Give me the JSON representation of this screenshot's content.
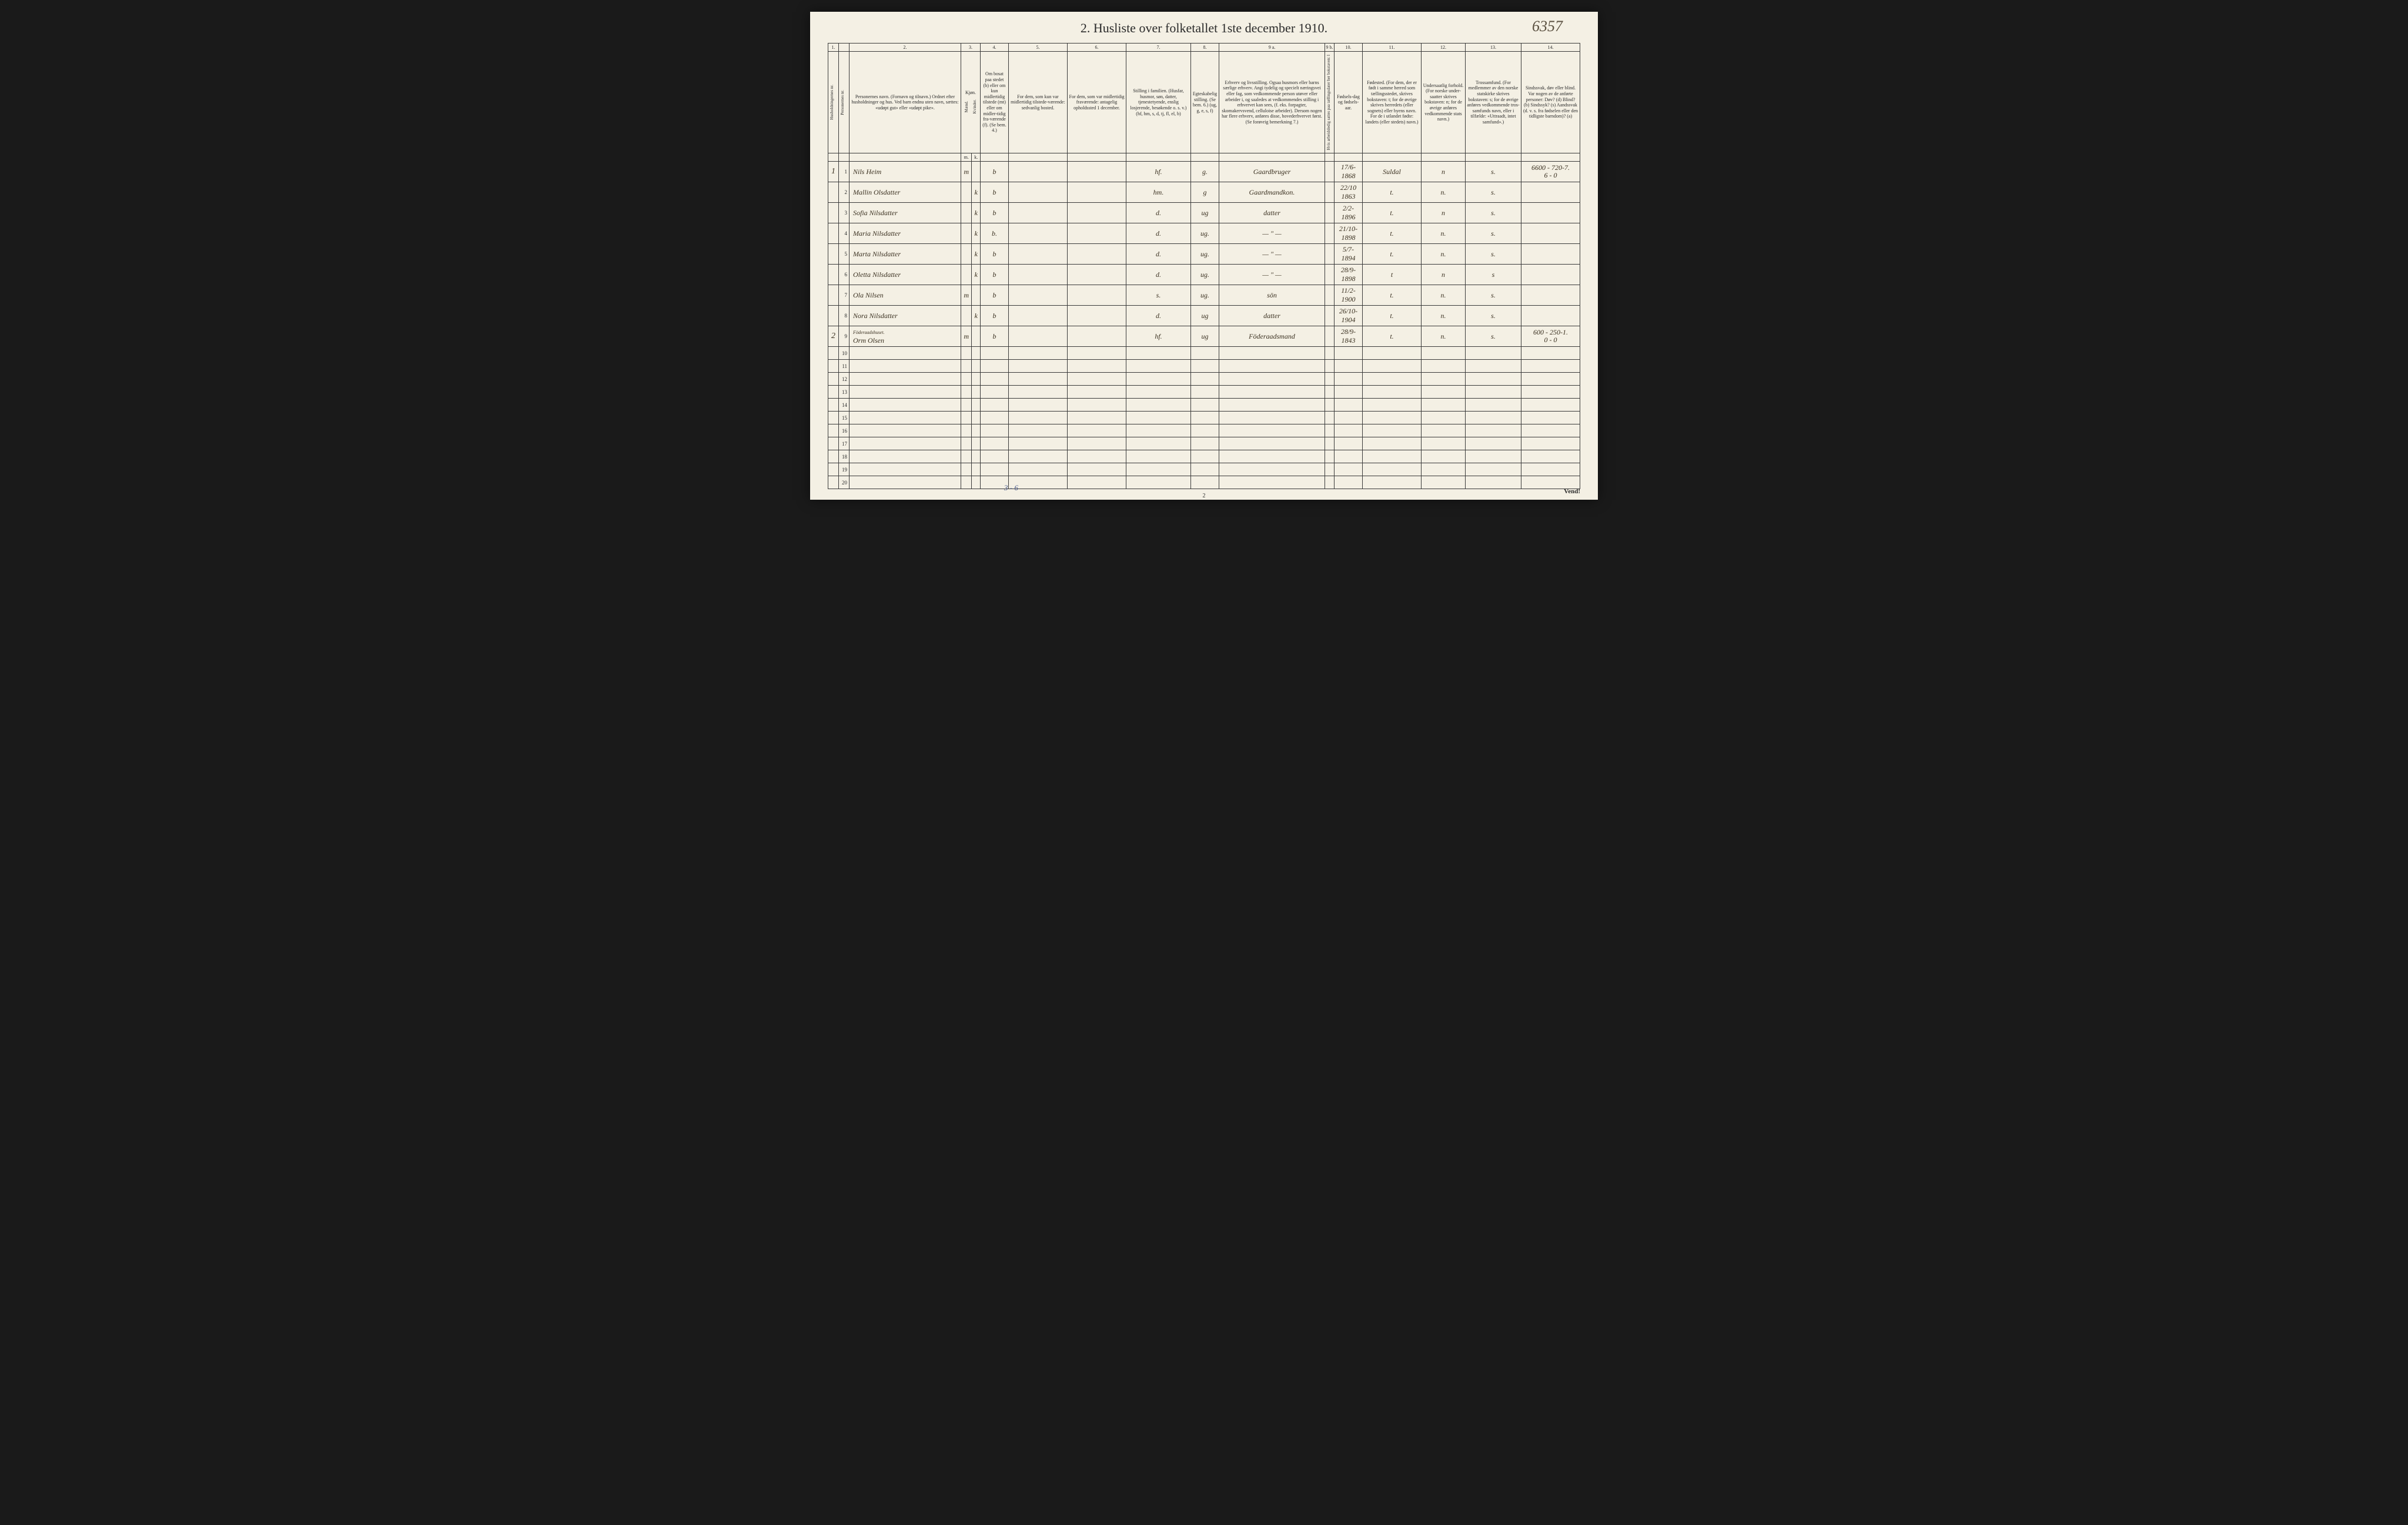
{
  "page_number_handwritten": "6357",
  "title": "2.  Husliste over folketallet 1ste december 1910.",
  "column_numbers": [
    "1.",
    "",
    "2.",
    "3.",
    "",
    "4.",
    "5.",
    "6.",
    "7.",
    "8.",
    "9 a.",
    "9 b.",
    "10.",
    "11.",
    "12.",
    "13.",
    "14."
  ],
  "headers": {
    "col1": "Husholdningernes nr.",
    "col2": "Personernes nr.",
    "col3": "Personernes navn.\n(Fornavn og tilnavn.)\nOrdnet efter husholdninger og hus.\nVed barn endnu uten navn, sættes: «udøpt gut» eller «udøpt pike».",
    "col4": "Kjøn.",
    "col4a": "Mænd.",
    "col4b": "Kvinder.",
    "col5": "Om bosat paa stedet (b) eller om kun midlertidig tilstede (mt) eller om midler-tidig fra-værende (f). (Se bem. 4.)",
    "col6": "For dem, som kun var midlertidig tilstede-værende:\nsedvanlig bosted.",
    "col7": "For dem, som var midlertidig fraværende:\nantagelig opholdssted 1 december.",
    "col8": "Stilling i familien.\n(Husfar, husmor, søn, datter, tjenestetyende, enslig losjerende, besøkende o. s. v.)\n(hf, hm, s, d, tj, fl, el, b)",
    "col9": "Egteskabelig stilling.\n(Se bem. 6.)\n(ug, g, e, s, f)",
    "col10": "Erhverv og livsstilling.\nOgsaa husmors eller barns særlige erhverv. Angi tydelig og specielt næringsvei eller fag, som vedkommende person utøver eller arbeider i, og saaledes at vedkommendes stilling i erhvervet kan sees, (f. eks. forpagter, skomakervsvend, celluloise arbeider). Dersom nogen har flere erhverv, anføres disse, hovederhvervet først. (Se forøvrig bemerkning 7.)",
    "col10b": "Hvis arbeidsledig sattes paa tællingsdater her bokstaven: l",
    "col11": "Fødsels-dag og fødsels-aar.",
    "col12": "Fødested.\n(For dem, der er født i samme herred som tællingsstedet, skrives bokstaven: t; for de øvrige skrives herredets (eller sognets) eller byens navn. For de i utlandet fødte: landets (eller stedets) navn.)",
    "col13": "Undersaatlig forhold.\n(For norske under-saatter skrives bokstaven: n; for de øvrige anføres vedkommende stats navn.)",
    "col14": "Trossamfund.\n(For medlemmer av den norske statskirke skrives bokstaven: s; for de øvrige anføres vedkommende tros-samfunds navn, eller i tilfælde: «Uttraadt, intet samfund».)",
    "col15": "Sindssvak, døv eller blind.\nVar nogen av de anførte personer:\nDøv? (d)\nBlind? (b)\nSindssyk? (s)\nAandssvak (d. v. s. fra fødselen eller den tidligste barndom)? (a)"
  },
  "rows": [
    {
      "household": "1",
      "num": "1",
      "name": "Nils Heim",
      "sex_m": "m",
      "sex_k": "",
      "residence": "b",
      "col6": "",
      "col7": "",
      "family": "hf.",
      "marital": "g.",
      "occupation": "Gaardbruger",
      "col10b": "",
      "birth": "17/6-1868",
      "birthplace": "Suldal",
      "nationality": "n",
      "faith": "s.",
      "notes": "6600 - 720-7.\n6 - 0"
    },
    {
      "household": "",
      "num": "2",
      "name": "Mallin Olsdatter",
      "sex_m": "",
      "sex_k": "k",
      "residence": "b",
      "col6": "",
      "col7": "",
      "family": "hm.",
      "marital": "g",
      "occupation": "Gaardmandkon.",
      "col10b": "",
      "birth": "22/10 1863",
      "birthplace": "t.",
      "nationality": "n.",
      "faith": "s.",
      "notes": ""
    },
    {
      "household": "",
      "num": "3",
      "name": "Sofia Nilsdatter",
      "sex_m": "",
      "sex_k": "k",
      "residence": "b",
      "col6": "",
      "col7": "",
      "family": "d.",
      "marital": "ug",
      "occupation": "datter",
      "col10b": "",
      "birth": "2/2-1896",
      "birthplace": "t.",
      "nationality": "n",
      "faith": "s.",
      "notes": ""
    },
    {
      "household": "",
      "num": "4",
      "name": "Maria Nilsdatter",
      "sex_m": "",
      "sex_k": "k",
      "residence": "b.",
      "col6": "",
      "col7": "",
      "family": "d.",
      "marital": "ug.",
      "occupation": "— \" —",
      "col10b": "",
      "birth": "21/10-1898",
      "birthplace": "t.",
      "nationality": "n.",
      "faith": "s.",
      "notes": ""
    },
    {
      "household": "",
      "num": "5",
      "name": "Marta Nilsdatter",
      "sex_m": "",
      "sex_k": "k",
      "residence": "b",
      "col6": "",
      "col7": "",
      "family": "d.",
      "marital": "ug.",
      "occupation": "— \" —",
      "col10b": "",
      "birth": "5/7-1894",
      "birthplace": "t.",
      "nationality": "n.",
      "faith": "s.",
      "notes": ""
    },
    {
      "household": "",
      "num": "6",
      "name": "Oletta Nilsdatter",
      "sex_m": "",
      "sex_k": "k",
      "residence": "b",
      "col6": "",
      "col7": "",
      "family": "d.",
      "marital": "ug.",
      "occupation": "— \" —",
      "col10b": "",
      "birth": "28/9-1898",
      "birthplace": "t",
      "nationality": "n",
      "faith": "s",
      "notes": ""
    },
    {
      "household": "",
      "num": "7",
      "name": "Ola Nilsen",
      "sex_m": "m",
      "sex_k": "",
      "residence": "b",
      "col6": "",
      "col7": "",
      "family": "s.",
      "marital": "ug.",
      "occupation": "sön",
      "col10b": "",
      "birth": "11/2-1900",
      "birthplace": "t.",
      "nationality": "n.",
      "faith": "s.",
      "notes": ""
    },
    {
      "household": "",
      "num": "8",
      "name": "Nora Nilsdatter",
      "sex_m": "",
      "sex_k": "k",
      "residence": "b",
      "col6": "",
      "col7": "",
      "family": "d.",
      "marital": "ug",
      "occupation": "datter",
      "col10b": "",
      "birth": "26/10-1904",
      "birthplace": "t.",
      "nationality": "n.",
      "faith": "s.",
      "notes": ""
    },
    {
      "household": "2",
      "num": "9",
      "name": "Föderaadshuset.\nOrm Olsen",
      "sex_m": "m",
      "sex_k": "",
      "residence": "b",
      "col6": "",
      "col7": "",
      "family": "hf.",
      "marital": "ug",
      "occupation": "Föderaadsmand",
      "col10b": "",
      "birth": "28/9-1843",
      "birthplace": "t.",
      "nationality": "n.",
      "faith": "s.",
      "notes": "600 - 250-1.\n0 - 0"
    },
    {
      "household": "",
      "num": "10",
      "name": "",
      "sex_m": "",
      "sex_k": "",
      "residence": "",
      "col6": "",
      "col7": "",
      "family": "",
      "marital": "",
      "occupation": "",
      "col10b": "",
      "birth": "",
      "birthplace": "",
      "nationality": "",
      "faith": "",
      "notes": ""
    },
    {
      "household": "",
      "num": "11",
      "name": "",
      "sex_m": "",
      "sex_k": "",
      "residence": "",
      "col6": "",
      "col7": "",
      "family": "",
      "marital": "",
      "occupation": "",
      "col10b": "",
      "birth": "",
      "birthplace": "",
      "nationality": "",
      "faith": "",
      "notes": ""
    },
    {
      "household": "",
      "num": "12",
      "name": "",
      "sex_m": "",
      "sex_k": "",
      "residence": "",
      "col6": "",
      "col7": "",
      "family": "",
      "marital": "",
      "occupation": "",
      "col10b": "",
      "birth": "",
      "birthplace": "",
      "nationality": "",
      "faith": "",
      "notes": ""
    },
    {
      "household": "",
      "num": "13",
      "name": "",
      "sex_m": "",
      "sex_k": "",
      "residence": "",
      "col6": "",
      "col7": "",
      "family": "",
      "marital": "",
      "occupation": "",
      "col10b": "",
      "birth": "",
      "birthplace": "",
      "nationality": "",
      "faith": "",
      "notes": ""
    },
    {
      "household": "",
      "num": "14",
      "name": "",
      "sex_m": "",
      "sex_k": "",
      "residence": "",
      "col6": "",
      "col7": "",
      "family": "",
      "marital": "",
      "occupation": "",
      "col10b": "",
      "birth": "",
      "birthplace": "",
      "nationality": "",
      "faith": "",
      "notes": ""
    },
    {
      "household": "",
      "num": "15",
      "name": "",
      "sex_m": "",
      "sex_k": "",
      "residence": "",
      "col6": "",
      "col7": "",
      "family": "",
      "marital": "",
      "occupation": "",
      "col10b": "",
      "birth": "",
      "birthplace": "",
      "nationality": "",
      "faith": "",
      "notes": ""
    },
    {
      "household": "",
      "num": "16",
      "name": "",
      "sex_m": "",
      "sex_k": "",
      "residence": "",
      "col6": "",
      "col7": "",
      "family": "",
      "marital": "",
      "occupation": "",
      "col10b": "",
      "birth": "",
      "birthplace": "",
      "nationality": "",
      "faith": "",
      "notes": ""
    },
    {
      "household": "",
      "num": "17",
      "name": "",
      "sex_m": "",
      "sex_k": "",
      "residence": "",
      "col6": "",
      "col7": "",
      "family": "",
      "marital": "",
      "occupation": "",
      "col10b": "",
      "birth": "",
      "birthplace": "",
      "nationality": "",
      "faith": "",
      "notes": ""
    },
    {
      "household": "",
      "num": "18",
      "name": "",
      "sex_m": "",
      "sex_k": "",
      "residence": "",
      "col6": "",
      "col7": "",
      "family": "",
      "marital": "",
      "occupation": "",
      "col10b": "",
      "birth": "",
      "birthplace": "",
      "nationality": "",
      "faith": "",
      "notes": ""
    },
    {
      "household": "",
      "num": "19",
      "name": "",
      "sex_m": "",
      "sex_k": "",
      "residence": "",
      "col6": "",
      "col7": "",
      "family": "",
      "marital": "",
      "occupation": "",
      "col10b": "",
      "birth": "",
      "birthplace": "",
      "nationality": "",
      "faith": "",
      "notes": ""
    },
    {
      "household": "",
      "num": "20",
      "name": "",
      "sex_m": "",
      "sex_k": "",
      "residence": "",
      "col6": "",
      "col7": "",
      "family": "",
      "marital": "",
      "occupation": "",
      "col10b": "",
      "birth": "",
      "birthplace": "",
      "nationality": "",
      "faith": "",
      "notes": ""
    }
  ],
  "sex_subheader": {
    "m": "m.",
    "k": "k."
  },
  "footer_page": "2",
  "bottom_note": "3 - 6",
  "vend": "Vend!",
  "colors": {
    "page_bg": "#f4f0e4",
    "body_bg": "#1a1a1a",
    "text": "#2a2a2a",
    "handwriting": "#3a3020",
    "border": "#3a3a3a"
  }
}
